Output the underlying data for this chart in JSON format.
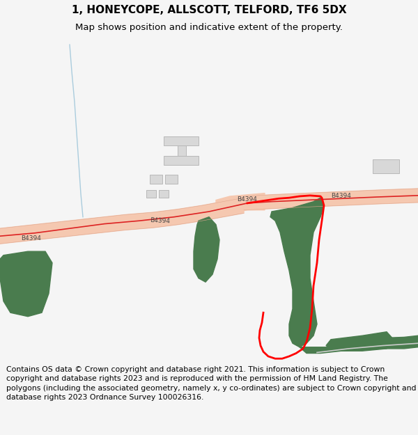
{
  "title_line1": "1, HONEYCOPE, ALLSCOTT, TELFORD, TF6 5DX",
  "title_line2": "Map shows position and indicative extent of the property.",
  "footer_text": "Contains OS data © Crown copyright and database right 2021. This information is subject to Crown copyright and database rights 2023 and is reproduced with the permission of HM Land Registry. The polygons (including the associated geometry, namely x, y co-ordinates) are subject to Crown copyright and database rights 2023 Ordnance Survey 100026316.",
  "bg_color": "#f5f5f5",
  "map_bg_color": "#ffffff",
  "road_fill_color": "#f5c8b0",
  "road_edge_color": "#e0a890",
  "road_center_color": "#dd2222",
  "green_color": "#4a7c4e",
  "building_fill": "#d8d8d8",
  "building_edge": "#b8b8b8",
  "stream_color": "#aaccdd",
  "label_color": "#444444",
  "boundary_color": "#ff0000",
  "title_fs": 11,
  "subtitle_fs": 9.5,
  "footer_fs": 7.8,
  "label_fs": 6.5
}
